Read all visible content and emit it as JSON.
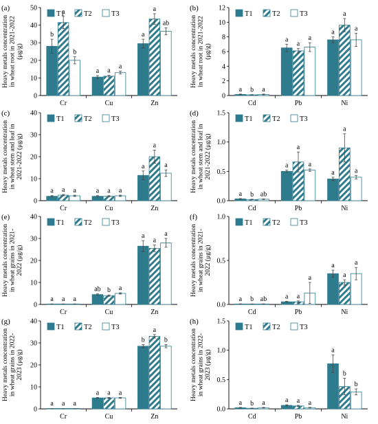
{
  "colors": {
    "T1": "#2e7b8e",
    "T2": "#2e7b8e",
    "T3": "#ffffff",
    "stroke": "#2e7b8e"
  },
  "legend": [
    "T1",
    "T2",
    "T3"
  ],
  "chart_data": [
    {
      "type": "bar",
      "panel": "(a)",
      "ylabel": [
        "Heavy metals concentration",
        "in wheat root in 2021-2022",
        "(μg/g)"
      ],
      "categories": [
        "Cr",
        "Cu",
        "Zn"
      ],
      "ylim": [
        0,
        50
      ],
      "yticks": [
        0,
        10,
        20,
        30,
        40,
        50
      ],
      "series": [
        {
          "name": "T1",
          "values": [
            28,
            10.5,
            29.5
          ],
          "errors": [
            4,
            0.8,
            2.5
          ],
          "letters": [
            "b",
            "a",
            "a"
          ]
        },
        {
          "name": "T2",
          "values": [
            41.5,
            11,
            43.5
          ],
          "errors": [
            3.5,
            0.5,
            3
          ],
          "letters": [
            "a",
            "a",
            "a"
          ]
        },
        {
          "name": "T3",
          "values": [
            20,
            13,
            36.5
          ],
          "errors": [
            2,
            0.8,
            2
          ],
          "letters": [
            "b",
            "a",
            "ab"
          ]
        }
      ]
    },
    {
      "type": "bar",
      "panel": "(b)",
      "ylabel": [
        "Heavy metals concentration",
        "in wheat root in 2021-2022",
        "(μg/g)"
      ],
      "categories": [
        "Cd",
        "Pb",
        "Ni"
      ],
      "ylim": [
        0,
        12
      ],
      "yticks": [
        0,
        2,
        4,
        6,
        8,
        10,
        12
      ],
      "series": [
        {
          "name": "T1",
          "values": [
            0.15,
            6.5,
            7.6
          ],
          "errors": [
            0.05,
            0.5,
            0.4
          ],
          "letters": [
            "a",
            "a",
            "a"
          ]
        },
        {
          "name": "T2",
          "values": [
            0.1,
            6.1,
            9.6
          ],
          "errors": [
            0.03,
            0.3,
            0.9
          ],
          "letters": [
            "b",
            "a",
            "a"
          ]
        },
        {
          "name": "T3",
          "values": [
            0.15,
            6.6,
            7.6
          ],
          "errors": [
            0.05,
            0.6,
            0.9
          ],
          "letters": [
            "a",
            "a",
            "a"
          ]
        }
      ]
    },
    {
      "type": "bar",
      "panel": "(c)",
      "ylabel": [
        "Heavy metals concentration",
        "in wheat  stem and leaf in",
        "2021-2022 (μg/g)"
      ],
      "categories": [
        "Cr",
        "Cu",
        "Zn"
      ],
      "ylim": [
        0,
        40
      ],
      "yticks": [
        0,
        10,
        20,
        30,
        40
      ],
      "series": [
        {
          "name": "T1",
          "values": [
            2,
            2,
            11.5
          ],
          "errors": [
            0.3,
            0.3,
            2
          ],
          "letters": [
            "a",
            "a",
            "a"
          ]
        },
        {
          "name": "T2",
          "values": [
            2.5,
            2,
            20
          ],
          "errors": [
            0.3,
            0.3,
            3
          ],
          "letters": [
            "a",
            "a",
            "a"
          ]
        },
        {
          "name": "T3",
          "values": [
            2.2,
            2.2,
            12.5
          ],
          "errors": [
            0.3,
            0.3,
            1.5
          ],
          "letters": [
            "a",
            "a",
            "a"
          ]
        }
      ]
    },
    {
      "type": "bar",
      "panel": "(d)",
      "ylabel": [
        "Heavy metals concentration",
        "in wheat  stem and leaf in",
        "2021-2022 (μg/g)"
      ],
      "categories": [
        "Cd",
        "Pb",
        "Ni"
      ],
      "ylim": [
        0,
        1.5
      ],
      "yticks": [
        "0.0",
        "0.5",
        "1.0",
        "1.5"
      ],
      "series": [
        {
          "name": "T1",
          "values": [
            0.03,
            0.5,
            0.37
          ],
          "errors": [
            0.005,
            0.02,
            0.03
          ],
          "letters": [
            "a",
            "a",
            "a"
          ]
        },
        {
          "name": "T2",
          "values": [
            0.02,
            0.66,
            0.9
          ],
          "errors": [
            0.005,
            0.17,
            0.24
          ],
          "letters": [
            "b",
            "a",
            "a"
          ]
        },
        {
          "name": "T3",
          "values": [
            0.025,
            0.52,
            0.4
          ],
          "errors": [
            0.005,
            0.02,
            0.03
          ],
          "letters": [
            "ab",
            "a",
            "a"
          ]
        }
      ]
    },
    {
      "type": "bar",
      "panel": "(e)",
      "ylabel": [
        "Heavy metals concentration",
        "in wheat grains in 2021-",
        "2022 (μg/g)"
      ],
      "categories": [
        "Cr",
        "Cu",
        "Zn"
      ],
      "ylim": [
        0,
        40
      ],
      "yticks": [
        0,
        10,
        20,
        30,
        40
      ],
      "series": [
        {
          "name": "T1",
          "values": [
            0.2,
            4.5,
            26.5
          ],
          "errors": [
            0.05,
            0.3,
            2.5
          ],
          "letters": [
            "a",
            "ab",
            "a"
          ]
        },
        {
          "name": "T2",
          "values": [
            0.2,
            4,
            25.5
          ],
          "errors": [
            0.05,
            0.3,
            1.5
          ],
          "letters": [
            "a",
            "b",
            "a"
          ]
        },
        {
          "name": "T3",
          "values": [
            0.2,
            5,
            28
          ],
          "errors": [
            0.05,
            0.3,
            2
          ],
          "letters": [
            "a",
            "a",
            "a"
          ]
        }
      ]
    },
    {
      "type": "bar",
      "panel": "(f)",
      "ylabel": [
        "Heavy metals concentration",
        "in wheat grains in 2021-",
        "2022 (μg/g)"
      ],
      "categories": [
        "Cd",
        "Pb",
        "Ni"
      ],
      "ylim": [
        0,
        1.0
      ],
      "yticks": [
        "0.0",
        "0.5",
        "1.0"
      ],
      "series": [
        {
          "name": "T1",
          "values": [
            0.005,
            0.03,
            0.35
          ],
          "errors": [
            0.002,
            0.005,
            0.04
          ],
          "letters": [
            "a",
            "a",
            "a"
          ]
        },
        {
          "name": "T2",
          "values": [
            0.004,
            0.03,
            0.25
          ],
          "errors": [
            0.002,
            0.01,
            0.03
          ],
          "letters": [
            "b",
            "a",
            "a"
          ]
        },
        {
          "name": "T3",
          "values": [
            0.005,
            0.13,
            0.35
          ],
          "errors": [
            0.002,
            0.12,
            0.07
          ],
          "letters": [
            "ab",
            "a",
            "a"
          ]
        }
      ]
    },
    {
      "type": "bar",
      "panel": "(g)",
      "ylabel": [
        "Heavy metals concentration",
        "in wheat grains in 2022-",
        "2023 (μg/g)"
      ],
      "categories": [
        "Cr",
        "Cu",
        "Zn"
      ],
      "ylim": [
        0,
        40
      ],
      "yticks": [
        0,
        10,
        20,
        30,
        40
      ],
      "series": [
        {
          "name": "T1",
          "values": [
            0.1,
            5,
            28.5
          ],
          "errors": [
            0.02,
            0.2,
            0.7
          ],
          "letters": [
            "a",
            "a",
            "b"
          ]
        },
        {
          "name": "T2",
          "values": [
            0.1,
            5,
            33
          ],
          "errors": [
            0.02,
            0.2,
            0.8
          ],
          "letters": [
            "a",
            "a",
            "a"
          ]
        },
        {
          "name": "T3",
          "values": [
            0.1,
            5,
            28.5
          ],
          "errors": [
            0.02,
            0.2,
            0.7
          ],
          "letters": [
            "a",
            "a",
            "b"
          ]
        }
      ]
    },
    {
      "type": "bar",
      "panel": "(h)",
      "ylabel": [
        "Heavy metals concentration",
        "in wheat grains in 2022-",
        "2023 (μg/g)"
      ],
      "categories": [
        "Cd",
        "Pb",
        "Ni"
      ],
      "ylim": [
        0,
        1.5
      ],
      "yticks": [
        "0.0",
        "0.5",
        "1.0",
        "1.5"
      ],
      "series": [
        {
          "name": "T1",
          "values": [
            0.02,
            0.06,
            0.77
          ],
          "errors": [
            0.005,
            0.01,
            0.15
          ],
          "letters": [
            "a",
            "a",
            "a"
          ]
        },
        {
          "name": "T2",
          "values": [
            0.01,
            0.05,
            0.38
          ],
          "errors": [
            0.003,
            0.01,
            0.14
          ],
          "letters": [
            "b",
            "a",
            "b"
          ]
        },
        {
          "name": "T3",
          "values": [
            0.02,
            0.02,
            0.29
          ],
          "errors": [
            0.005,
            0.005,
            0.05
          ],
          "letters": [
            "a",
            "a",
            "b"
          ]
        }
      ]
    }
  ]
}
